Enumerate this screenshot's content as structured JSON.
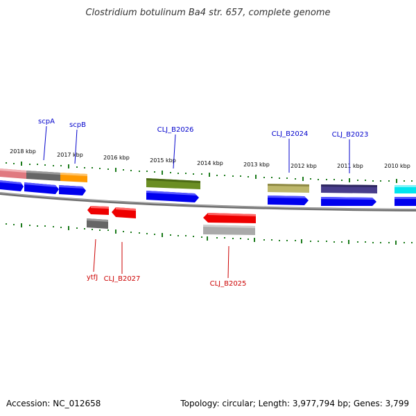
{
  "title": "Clostridium botulinum Ba4 str. 657, complete genome",
  "footer": {
    "accession": "Accession: NC_012658",
    "summary": "Topology: circular; Length: 3,977,794 bp; Genes: 3,799"
  },
  "ruler": [
    "2018 kbp",
    "2017 kbp",
    "2016 kbp",
    "2015 kbp",
    "2014 kbp",
    "2013 kbp",
    "2012 kbp",
    "2011 kbp",
    "2010 kbp"
  ],
  "genes_forward": [
    "scpA",
    "scpB",
    "CLJ_B2026",
    "CLJ_B2024",
    "CLJ_B2023"
  ],
  "genes_reverse": [
    "ytfJ",
    "CLJ_B2027",
    "CLJ_B2025"
  ],
  "colors": {
    "forward_label": "#0000cc",
    "reverse_label": "#cc0000",
    "tick": "#1a7a1a",
    "backbone": "#808080",
    "cds": "#0000ee",
    "red_gene": "#ee0000",
    "grey_gene": "#666666",
    "pink_gene": "#e07a80",
    "orange_gene": "#ff9900",
    "olive_gene": "#6b8e23",
    "khaki_gene": "#bdb76b",
    "indigo_gene": "#483d8b",
    "cyan_gene": "#00e5ee",
    "silver_gene": "#aaaaaa"
  }
}
